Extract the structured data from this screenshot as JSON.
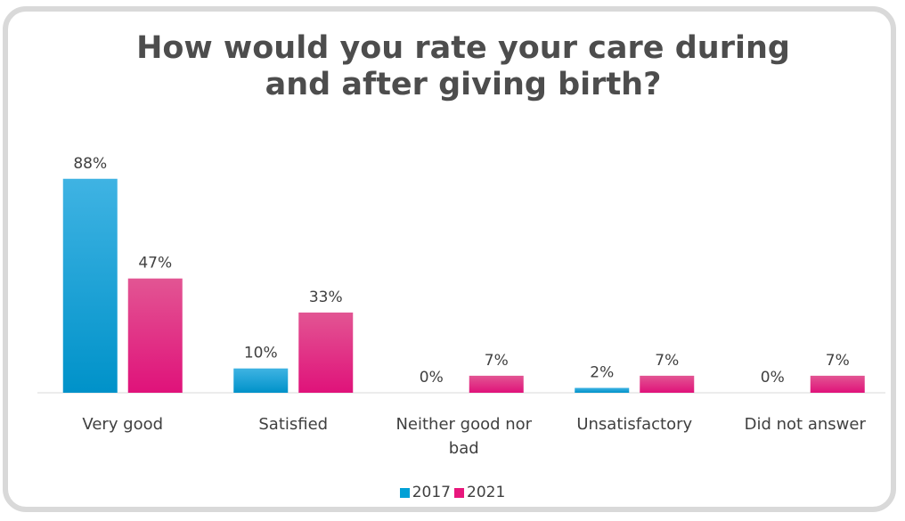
{
  "chart_data": {
    "type": "bar",
    "title_lines": [
      "How would you rate your care during",
      "and after giving birth?"
    ],
    "categories": [
      "Very good",
      "Satisfied",
      "Neither good nor bad",
      "Unsatisfactory",
      "Did not answer"
    ],
    "category_label_lines": [
      [
        "Very good"
      ],
      [
        "Satisfied"
      ],
      [
        "Neither good nor",
        "bad"
      ],
      [
        "Unsatisfactory"
      ],
      [
        "Did not answer"
      ]
    ],
    "series": [
      {
        "name": "2017",
        "values": [
          88,
          10,
          0,
          2,
          0
        ],
        "labels": [
          "88%",
          "10%",
          "0%",
          "2%",
          "0%"
        ],
        "color": "#00a0d6"
      },
      {
        "name": "2021",
        "values": [
          47,
          33,
          7,
          7,
          7
        ],
        "labels": [
          "47%",
          "33%",
          "7%",
          "7%",
          "7%"
        ],
        "color": "#e8177c"
      }
    ],
    "ylim": [
      0,
      100
    ],
    "grid": false,
    "legend_position": "bottom"
  }
}
